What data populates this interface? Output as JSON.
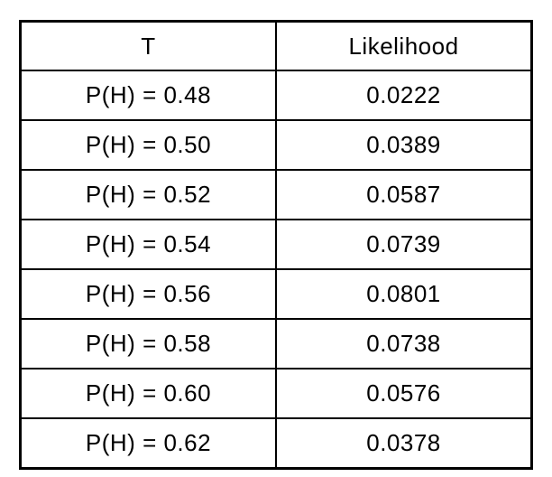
{
  "chart_data": {
    "type": "table",
    "title": "",
    "columns": [
      "T",
      "Likelihood"
    ],
    "rows": [
      [
        "P(H) = 0.48",
        "0.0222"
      ],
      [
        "P(H) = 0.50",
        "0.0389"
      ],
      [
        "P(H) = 0.52",
        "0.0587"
      ],
      [
        "P(H) = 0.54",
        "0.0739"
      ],
      [
        "P(H) = 0.56",
        "0.0801"
      ],
      [
        "P(H) = 0.58",
        "0.0738"
      ],
      [
        "P(H) = 0.60",
        "0.0576"
      ],
      [
        "P(H) = 0.62",
        "0.0378"
      ]
    ],
    "layout": {
      "border_color": "#000000",
      "text_color": "#000000",
      "background_color": "#ffffff",
      "grid": true
    }
  }
}
